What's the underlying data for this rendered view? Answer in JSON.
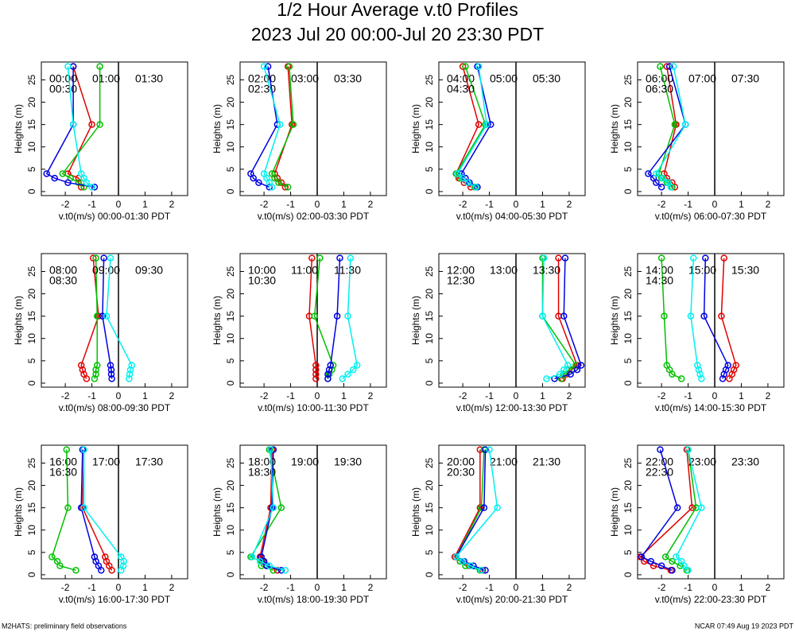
{
  "title": "1/2 Hour Average v.t0 Profiles",
  "subtitle": "2023 Jul 20 00:00-Jul 20 23:30 PDT",
  "footer_left": "M2HATS: preliminary field observations",
  "footer_right": "NCAR 07:49 Aug 19 2023 PDT",
  "chart_data": [
    {
      "type": "line",
      "xlabel": "v.t0(m/s) 00:00-01:30 PDT",
      "ylabel": "Heights (m)",
      "xlim": [
        -2.9,
        2.6
      ],
      "ylim": [
        -0.9,
        29
      ],
      "xticks": [
        -2,
        -1,
        0,
        1,
        2
      ],
      "yticks": [
        0,
        5,
        10,
        15,
        20,
        25
      ],
      "y": [
        1,
        2,
        3,
        4,
        15,
        28
      ],
      "series": [
        {
          "name": "00:00",
          "color": "#e00000",
          "values": [
            -1.4,
            -1.4,
            -1.5,
            -1.9,
            -1.0,
            -1.7
          ]
        },
        {
          "name": "00:30",
          "color": "#00c000",
          "values": [
            -1.3,
            -1.5,
            -1.8,
            -2.1,
            -0.7,
            -0.7
          ]
        },
        {
          "name": "01:00",
          "color": "#0000e0",
          "values": [
            -0.9,
            -1.9,
            -2.4,
            -2.7,
            -1.7,
            -1.7
          ]
        },
        {
          "name": "01:30",
          "color": "#00f0f0",
          "values": [
            -1.0,
            -1.2,
            -1.3,
            -1.4,
            -1.7,
            -1.9
          ]
        }
      ]
    },
    {
      "type": "line",
      "xlabel": "v.t0(m/s) 02:00-03:30 PDT",
      "ylabel": "Heights (m)",
      "xlim": [
        -2.9,
        2.6
      ],
      "ylim": [
        -0.9,
        29
      ],
      "xticks": [
        -2,
        -1,
        0,
        1,
        2
      ],
      "yticks": [
        0,
        5,
        10,
        15,
        20,
        25
      ],
      "y": [
        1,
        2,
        3,
        4,
        15,
        28
      ],
      "series": [
        {
          "name": "02:00",
          "color": "#e00000",
          "values": [
            -1.2,
            -1.35,
            -1.5,
            -1.6,
            -0.95,
            -1.1
          ]
        },
        {
          "name": "02:30",
          "color": "#00c000",
          "values": [
            -1.1,
            -1.45,
            -1.6,
            -1.7,
            -0.9,
            -1.05
          ]
        },
        {
          "name": "03:00",
          "color": "#0000e0",
          "values": [
            -1.8,
            -2.2,
            -2.4,
            -2.5,
            -1.5,
            -1.85
          ]
        },
        {
          "name": "03:30",
          "color": "#00f0f0",
          "values": [
            -1.7,
            -1.8,
            -1.9,
            -2.0,
            -1.4,
            -2.0
          ]
        }
      ]
    },
    {
      "type": "line",
      "xlabel": "v.t0(m/s) 04:00-05:30 PDT",
      "ylabel": "Heights (m)",
      "xlim": [
        -2.9,
        2.6
      ],
      "ylim": [
        -0.9,
        29
      ],
      "xticks": [
        -2,
        -1,
        0,
        1,
        2
      ],
      "yticks": [
        0,
        5,
        10,
        15,
        20,
        25
      ],
      "y": [
        1,
        2,
        3,
        4,
        15,
        28
      ],
      "series": [
        {
          "name": "04:00",
          "color": "#e00000",
          "values": [
            -1.7,
            -1.95,
            -2.15,
            -2.25,
            -1.4,
            -2.0
          ]
        },
        {
          "name": "04:30",
          "color": "#00c000",
          "values": [
            -1.55,
            -1.8,
            -2.1,
            -2.25,
            -1.15,
            -1.9
          ]
        },
        {
          "name": "05:00",
          "color": "#0000e0",
          "values": [
            -1.45,
            -1.75,
            -1.9,
            -2.05,
            -0.95,
            -1.45
          ]
        },
        {
          "name": "05:30",
          "color": "#00f0f0",
          "values": [
            -1.5,
            -1.8,
            -2.0,
            -2.2,
            -1.1,
            -1.4
          ]
        }
      ]
    },
    {
      "type": "line",
      "xlabel": "v.t0(m/s) 06:00-07:30 PDT",
      "ylabel": "Heights (m)",
      "xlim": [
        -2.9,
        2.6
      ],
      "ylim": [
        -0.9,
        29
      ],
      "xticks": [
        -2,
        -1,
        0,
        1,
        2
      ],
      "yticks": [
        0,
        5,
        10,
        15,
        20,
        25
      ],
      "y": [
        1,
        2,
        3,
        4,
        15,
        28
      ],
      "series": [
        {
          "name": "06:00",
          "color": "#e00000",
          "values": [
            -1.5,
            -1.6,
            -1.8,
            -1.9,
            -1.45,
            -1.8
          ]
        },
        {
          "name": "06:30",
          "color": "#00c000",
          "values": [
            -1.6,
            -1.8,
            -2.0,
            -2.1,
            -1.5,
            -2.05
          ]
        },
        {
          "name": "07:00",
          "color": "#0000e0",
          "values": [
            -2.0,
            -2.2,
            -2.3,
            -2.5,
            -1.1,
            -1.7
          ]
        },
        {
          "name": "07:30",
          "color": "#00f0f0",
          "values": [
            -1.65,
            -1.75,
            -1.95,
            -2.2,
            -1.1,
            -1.55
          ]
        }
      ]
    },
    {
      "type": "line",
      "xlabel": "v.t0(m/s) 08:00-09:30 PDT",
      "ylabel": "Heights (m)",
      "xlim": [
        -2.9,
        2.6
      ],
      "ylim": [
        -0.9,
        29
      ],
      "xticks": [
        -2,
        -1,
        0,
        1,
        2
      ],
      "yticks": [
        0,
        5,
        10,
        15,
        20,
        25
      ],
      "y": [
        1,
        2,
        3,
        4,
        15,
        28
      ],
      "series": [
        {
          "name": "08:00",
          "color": "#e00000",
          "values": [
            -1.2,
            -1.3,
            -1.35,
            -1.4,
            -0.75,
            -0.95
          ]
        },
        {
          "name": "08:30",
          "color": "#00c000",
          "values": [
            -0.9,
            -0.85,
            -0.85,
            -0.8,
            -0.8,
            -0.85
          ]
        },
        {
          "name": "09:00",
          "color": "#0000e0",
          "values": [
            -0.25,
            -0.27,
            -0.27,
            -0.3,
            -0.6,
            -0.55
          ]
        },
        {
          "name": "09:30",
          "color": "#00f0f0",
          "values": [
            0.4,
            0.42,
            0.45,
            0.5,
            -0.45,
            -0.3
          ]
        }
      ]
    },
    {
      "type": "line",
      "xlabel": "v.t0(m/s) 10:00-11:30 PDT",
      "ylabel": "Heights (m)",
      "xlim": [
        -2.9,
        2.6
      ],
      "ylim": [
        -0.9,
        29
      ],
      "xticks": [
        -2,
        -1,
        0,
        1,
        2
      ],
      "yticks": [
        0,
        5,
        10,
        15,
        20,
        25
      ],
      "y": [
        1,
        2,
        3,
        4,
        15,
        28
      ],
      "series": [
        {
          "name": "10:00",
          "color": "#e00000",
          "values": [
            -0.05,
            -0.05,
            -0.05,
            -0.05,
            -0.3,
            -0.2
          ]
        },
        {
          "name": "10:30",
          "color": "#00c000",
          "values": [
            0.4,
            0.45,
            0.55,
            0.6,
            -0.1,
            0.1
          ]
        },
        {
          "name": "11:00",
          "color": "#0000e0",
          "values": [
            0.4,
            0.4,
            0.45,
            0.5,
            0.75,
            0.85
          ]
        },
        {
          "name": "11:30",
          "color": "#00f0f0",
          "values": [
            0.95,
            1.15,
            1.35,
            1.5,
            1.15,
            1.25
          ]
        }
      ]
    },
    {
      "type": "line",
      "xlabel": "v.t0(m/s) 12:00-13:30 PDT",
      "ylabel": "Heights (m)",
      "xlim": [
        -2.9,
        2.6
      ],
      "ylim": [
        -0.9,
        29
      ],
      "xticks": [
        -2,
        -1,
        0,
        1,
        2
      ],
      "yticks": [
        0,
        5,
        10,
        15,
        20,
        25
      ],
      "y": [
        1,
        2,
        3,
        4,
        15,
        28
      ],
      "series": [
        {
          "name": "12:00",
          "color": "#e00000",
          "values": [
            1.75,
            1.9,
            2.1,
            2.3,
            1.6,
            1.6
          ]
        },
        {
          "name": "12:30",
          "color": "#00c000",
          "values": [
            1.7,
            1.8,
            2.0,
            2.25,
            1.0,
            1.0
          ]
        },
        {
          "name": "13:00",
          "color": "#0000e0",
          "values": [
            1.45,
            2.05,
            2.3,
            2.45,
            1.8,
            1.85
          ]
        },
        {
          "name": "13:30",
          "color": "#00f0f0",
          "values": [
            1.15,
            1.65,
            1.8,
            1.95,
            1.0,
            1.05
          ]
        }
      ]
    },
    {
      "type": "line",
      "xlabel": "v.t0(m/s) 14:00-15:30 PDT",
      "ylabel": "Heights (m)",
      "xlim": [
        -2.9,
        2.6
      ],
      "ylim": [
        -0.9,
        29
      ],
      "xticks": [
        -2,
        -1,
        0,
        1,
        2
      ],
      "yticks": [
        0,
        5,
        10,
        15,
        20,
        25
      ],
      "y": [
        1,
        2,
        3,
        4,
        15,
        28
      ],
      "series": [
        {
          "name": "14:00",
          "color": "#e00000",
          "values": [
            0.55,
            0.65,
            0.72,
            0.8,
            0.25,
            0.35
          ]
        },
        {
          "name": "14:30",
          "color": "#00c000",
          "values": [
            -1.25,
            -1.6,
            -1.7,
            -1.8,
            -1.9,
            -2.0
          ]
        },
        {
          "name": "15:00",
          "color": "#0000e0",
          "values": [
            0.3,
            0.35,
            0.42,
            0.5,
            -0.4,
            -0.35
          ]
        },
        {
          "name": "15:30",
          "color": "#00f0f0",
          "values": [
            -0.5,
            -0.55,
            -0.6,
            -0.65,
            -0.9,
            -0.8
          ]
        }
      ]
    },
    {
      "type": "line",
      "xlabel": "v.t0(m/s) 16:00-17:30 PDT",
      "ylabel": "Heights (m)",
      "xlim": [
        -2.9,
        2.6
      ],
      "ylim": [
        -0.9,
        29
      ],
      "xticks": [
        -2,
        -1,
        0,
        1,
        2
      ],
      "yticks": [
        0,
        5,
        10,
        15,
        20,
        25
      ],
      "y": [
        1,
        2,
        3,
        4,
        15,
        28
      ],
      "series": [
        {
          "name": "16:00",
          "color": "#e00000",
          "values": [
            -0.25,
            -0.35,
            -0.45,
            -0.5,
            -1.35,
            -1.3
          ]
        },
        {
          "name": "16:30",
          "color": "#00c000",
          "values": [
            -1.6,
            -2.2,
            -2.3,
            -2.5,
            -1.9,
            -1.95
          ]
        },
        {
          "name": "17:00",
          "color": "#0000e0",
          "values": [
            -0.65,
            -0.75,
            -0.85,
            -0.9,
            -1.4,
            -1.35
          ]
        },
        {
          "name": "17:30",
          "color": "#00f0f0",
          "values": [
            0.1,
            0.18,
            0.2,
            0.1,
            -1.3,
            -1.3
          ]
        }
      ]
    },
    {
      "type": "line",
      "xlabel": "v.t0(m/s) 18:00-19:30 PDT",
      "ylabel": "Heights (m)",
      "xlim": [
        -2.9,
        2.6
      ],
      "ylim": [
        -0.9,
        29
      ],
      "xticks": [
        -2,
        -1,
        0,
        1,
        2
      ],
      "yticks": [
        0,
        5,
        10,
        15,
        20,
        25
      ],
      "y": [
        1,
        2,
        3,
        4,
        15,
        28
      ],
      "series": [
        {
          "name": "18:00",
          "color": "#e00000",
          "values": [
            -1.5,
            -1.9,
            -2.05,
            -2.15,
            -1.75,
            -1.7
          ]
        },
        {
          "name": "18:30",
          "color": "#00c000",
          "values": [
            -1.65,
            -2.1,
            -2.1,
            -2.5,
            -1.35,
            -1.8
          ]
        },
        {
          "name": "19:00",
          "color": "#0000e0",
          "values": [
            -1.35,
            -1.9,
            -2.0,
            -2.1,
            -1.7,
            -1.65
          ]
        },
        {
          "name": "19:30",
          "color": "#00f0f0",
          "values": [
            -1.2,
            -1.8,
            -2.15,
            -2.45,
            -1.65,
            -1.75
          ]
        }
      ]
    },
    {
      "type": "line",
      "xlabel": "v.t0(m/s) 20:00-21:30 PDT",
      "ylabel": "Heights (m)",
      "xlim": [
        -2.9,
        2.6
      ],
      "ylim": [
        -0.9,
        29
      ],
      "xticks": [
        -2,
        -1,
        0,
        1,
        2
      ],
      "yticks": [
        0,
        5,
        10,
        15,
        20,
        25
      ],
      "y": [
        1,
        2,
        3,
        4,
        15,
        28
      ],
      "series": [
        {
          "name": "20:00",
          "color": "#e00000",
          "values": [
            -1.25,
            -1.75,
            -2.1,
            -2.3,
            -1.35,
            -1.35
          ]
        },
        {
          "name": "20:30",
          "color": "#00c000",
          "values": [
            -1.35,
            -1.9,
            -2.1,
            -2.25,
            -1.3,
            -1.2
          ]
        },
        {
          "name": "21:00",
          "color": "#0000e0",
          "values": [
            -1.15,
            -1.6,
            -1.95,
            -2.25,
            -1.2,
            -1.15
          ]
        },
        {
          "name": "21:30",
          "color": "#00f0f0",
          "values": [
            -1.3,
            -1.7,
            -2.0,
            -2.25,
            -0.7,
            -1.0
          ]
        }
      ]
    },
    {
      "type": "line",
      "xlabel": "v.t0(m/s) 22:00-23:30 PDT",
      "ylabel": "Heights (m)",
      "xlim": [
        -2.9,
        2.6
      ],
      "ylim": [
        -0.9,
        29
      ],
      "xticks": [
        -2,
        -1,
        0,
        1,
        2
      ],
      "yticks": [
        0,
        5,
        10,
        15,
        20,
        25
      ],
      "y": [
        1,
        2,
        3,
        4,
        15,
        28
      ],
      "series": [
        {
          "name": "22:00",
          "color": "#e00000",
          "values": [
            -1.65,
            -2.3,
            -2.65,
            -2.8,
            -0.85,
            -1.05
          ]
        },
        {
          "name": "22:30",
          "color": "#00c000",
          "values": [
            -1.05,
            -1.3,
            -1.6,
            -1.85,
            -0.7,
            -1.0
          ]
        },
        {
          "name": "23:00",
          "color": "#0000e0",
          "values": [
            -1.6,
            -2.0,
            -2.4,
            -2.75,
            -1.4,
            -2.05
          ]
        },
        {
          "name": "23:30",
          "color": "#00f0f0",
          "values": [
            -1.0,
            -1.15,
            -1.25,
            -1.45,
            -0.5,
            -1.0
          ]
        }
      ]
    }
  ]
}
